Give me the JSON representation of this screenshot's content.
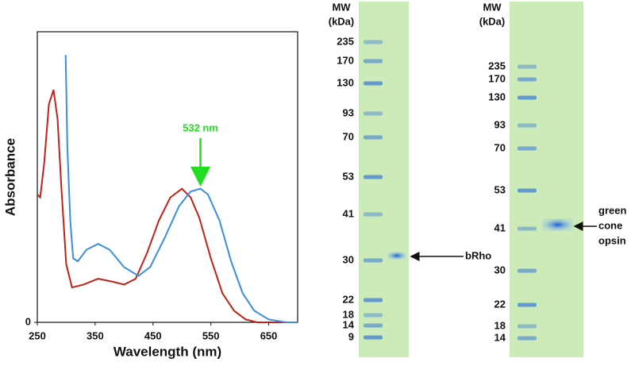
{
  "chart_data": {
    "type": "line",
    "xlabel": "Wavelength (nm)",
    "ylabel": "Absorbance",
    "xlim": [
      250,
      700
    ],
    "xticks": [
      250,
      350,
      450,
      550,
      650
    ],
    "ylim": [
      0,
      1
    ],
    "yticks": [
      0
    ],
    "annotation": {
      "text": "532 nm",
      "x": 532,
      "color": "#22dd22"
    },
    "series": [
      {
        "color": "#c0221a",
        "x": [
          250,
          255,
          262,
          270,
          278,
          285,
          292,
          300,
          310,
          330,
          355,
          380,
          400,
          420,
          440,
          460,
          480,
          500,
          515,
          530,
          550,
          570,
          590,
          610,
          630,
          650,
          700
        ],
        "values": [
          0.44,
          0.43,
          0.55,
          0.75,
          0.8,
          0.7,
          0.45,
          0.2,
          0.12,
          0.13,
          0.15,
          0.14,
          0.13,
          0.15,
          0.24,
          0.35,
          0.43,
          0.46,
          0.43,
          0.36,
          0.22,
          0.1,
          0.04,
          0.01,
          0,
          0,
          0
        ]
      },
      {
        "color": "#3b8de0",
        "x": [
          299,
          302,
          307,
          312,
          320,
          335,
          355,
          375,
          400,
          425,
          445,
          470,
          495,
          515,
          532,
          545,
          565,
          585,
          605,
          625,
          650,
          680,
          700
        ],
        "values": [
          0.92,
          0.6,
          0.35,
          0.22,
          0.21,
          0.25,
          0.27,
          0.25,
          0.19,
          0.16,
          0.19,
          0.29,
          0.4,
          0.45,
          0.46,
          0.44,
          0.35,
          0.21,
          0.1,
          0.04,
          0.01,
          0,
          0
        ]
      }
    ]
  },
  "gels": [
    {
      "header": [
        "MW",
        "(kDa)"
      ],
      "markers": [
        235,
        170,
        130,
        93,
        70,
        53,
        41,
        30,
        22,
        18,
        14,
        9
      ],
      "sample_label": [
        "bRho"
      ]
    },
    {
      "header": [
        "MW",
        "(kDa)"
      ],
      "markers": [
        235,
        170,
        130,
        93,
        70,
        53,
        41,
        30,
        22,
        18,
        14
      ],
      "sample_label": [
        "green",
        "cone",
        "opsin"
      ]
    }
  ]
}
